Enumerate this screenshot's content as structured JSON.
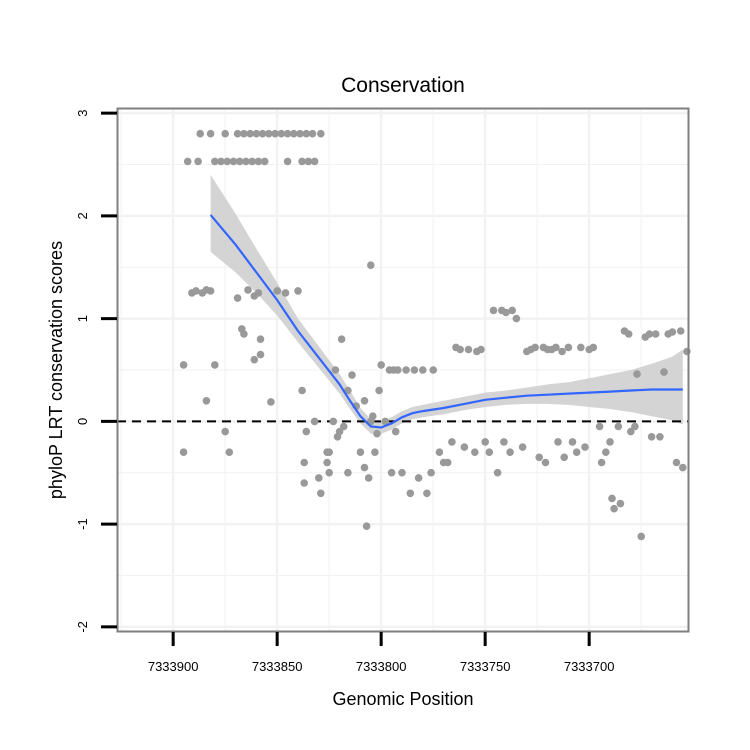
{
  "chart_data": {
    "type": "scatter",
    "title": "Conservation",
    "xlabel": "Genomic Position",
    "ylabel": "phyloP LRT conservation scores",
    "x_reversed": true,
    "xlim": [
      7333927,
      7333652
    ],
    "ylim": [
      -2.05,
      3.05
    ],
    "x_ticks": [
      7333900,
      7333850,
      7333800,
      7333750,
      7333700
    ],
    "x_tick_labels": [
      "7333900",
      "7333850",
      "7333800",
      "7333750",
      "7333700"
    ],
    "y_ticks": [
      -2,
      -1,
      0,
      1,
      2,
      3
    ],
    "y_tick_labels": [
      "-2",
      "-1",
      "0",
      "1",
      "2",
      "3"
    ],
    "reference_line": {
      "y": 0,
      "style": "dashed"
    },
    "colors": {
      "points": "#999999",
      "smooth": "#3366ff",
      "ribbon": "#cccccc",
      "reference": "#000000",
      "panel_border": "#7f7f7f",
      "grid": "#f2f2f2"
    },
    "series": [
      {
        "name": "scores",
        "kind": "points",
        "points": [
          [
            7333887,
            2.8
          ],
          [
            7333882,
            2.8
          ],
          [
            7333875,
            2.8
          ],
          [
            7333869,
            2.8
          ],
          [
            7333866,
            2.8
          ],
          [
            7333863,
            2.8
          ],
          [
            7333860,
            2.8
          ],
          [
            7333857,
            2.8
          ],
          [
            7333854,
            2.8
          ],
          [
            7333851,
            2.8
          ],
          [
            7333848,
            2.8
          ],
          [
            7333845,
            2.8
          ],
          [
            7333842,
            2.8
          ],
          [
            7333839,
            2.8
          ],
          [
            7333836,
            2.8
          ],
          [
            7333833,
            2.8
          ],
          [
            7333829,
            2.8
          ],
          [
            7333893,
            2.53
          ],
          [
            7333888,
            2.53
          ],
          [
            7333880,
            2.53
          ],
          [
            7333877,
            2.53
          ],
          [
            7333874,
            2.53
          ],
          [
            7333871,
            2.53
          ],
          [
            7333868,
            2.53
          ],
          [
            7333865,
            2.53
          ],
          [
            7333862,
            2.53
          ],
          [
            7333859,
            2.53
          ],
          [
            7333856,
            2.53
          ],
          [
            7333845,
            2.53
          ],
          [
            7333838,
            2.53
          ],
          [
            7333835,
            2.53
          ],
          [
            7333832,
            2.53
          ],
          [
            7333891,
            1.25
          ],
          [
            7333889,
            1.27
          ],
          [
            7333886,
            1.25
          ],
          [
            7333884,
            1.28
          ],
          [
            7333882,
            1.27
          ],
          [
            7333864,
            1.28
          ],
          [
            7333859,
            1.25
          ],
          [
            7333850,
            1.27
          ],
          [
            7333846,
            1.25
          ],
          [
            7333840,
            1.27
          ],
          [
            7333805,
            1.52
          ],
          [
            7333895,
            0.55
          ],
          [
            7333880,
            0.55
          ],
          [
            7333884,
            0.2
          ],
          [
            7333875,
            -0.1
          ],
          [
            7333873,
            -0.3
          ],
          [
            7333895,
            -0.3
          ],
          [
            7333869,
            1.2
          ],
          [
            7333867,
            0.9
          ],
          [
            7333866,
            0.85
          ],
          [
            7333861,
            0.6
          ],
          [
            7333858,
            0.8
          ],
          [
            7333858,
            0.65
          ],
          [
            7333861,
            1.22
          ],
          [
            7333853,
            0.19
          ],
          [
            7333838,
            0.3
          ],
          [
            7333837,
            -0.6
          ],
          [
            7333837,
            -0.4
          ],
          [
            7333836,
            -0.1
          ],
          [
            7333832,
            0.0
          ],
          [
            7333830,
            -0.55
          ],
          [
            7333829,
            -0.7
          ],
          [
            7333826,
            -0.3
          ],
          [
            7333826,
            -0.4
          ],
          [
            7333825,
            -0.5
          ],
          [
            7333825,
            -0.3
          ],
          [
            7333823,
            0.0
          ],
          [
            7333822,
            0.5
          ],
          [
            7333821,
            -0.15
          ],
          [
            7333820,
            -0.1
          ],
          [
            7333819,
            0.8
          ],
          [
            7333818,
            -0.05
          ],
          [
            7333816,
            0.3
          ],
          [
            7333816,
            -0.5
          ],
          [
            7333814,
            0.45
          ],
          [
            7333812,
            0.15
          ],
          [
            7333810,
            -0.3
          ],
          [
            7333808,
            -0.45
          ],
          [
            7333808,
            0.2
          ],
          [
            7333807,
            -1.02
          ],
          [
            7333806,
            -0.55
          ],
          [
            7333805,
            0.0
          ],
          [
            7333804,
            0.05
          ],
          [
            7333803,
            -0.3
          ],
          [
            7333802,
            -0.12
          ],
          [
            7333801,
            0.3
          ],
          [
            7333800,
            0.55
          ],
          [
            7333798,
            0.0
          ],
          [
            7333796,
            0.5
          ],
          [
            7333795,
            -0.5
          ],
          [
            7333794,
            0.5
          ],
          [
            7333793,
            -0.1
          ],
          [
            7333792,
            0.5
          ],
          [
            7333790,
            -0.5
          ],
          [
            7333788,
            0.5
          ],
          [
            7333786,
            -0.7
          ],
          [
            7333784,
            0.5
          ],
          [
            7333782,
            -0.55
          ],
          [
            7333780,
            0.5
          ],
          [
            7333778,
            -0.7
          ],
          [
            7333776,
            -0.5
          ],
          [
            7333775,
            0.5
          ],
          [
            7333772,
            -0.3
          ],
          [
            7333770,
            -0.4
          ],
          [
            7333768,
            -0.4
          ],
          [
            7333766,
            -0.2
          ],
          [
            7333764,
            0.72
          ],
          [
            7333762,
            0.7
          ],
          [
            7333760,
            -0.25
          ],
          [
            7333758,
            0.7
          ],
          [
            7333755,
            -0.3
          ],
          [
            7333754,
            0.68
          ],
          [
            7333752,
            0.7
          ],
          [
            7333750,
            -0.2
          ],
          [
            7333748,
            -0.3
          ],
          [
            7333746,
            1.08
          ],
          [
            7333744,
            -0.5
          ],
          [
            7333742,
            1.08
          ],
          [
            7333741,
            -0.2
          ],
          [
            7333740,
            1.06
          ],
          [
            7333738,
            -0.3
          ],
          [
            7333737,
            1.08
          ],
          [
            7333735,
            1.0
          ],
          [
            7333732,
            -0.25
          ],
          [
            7333730,
            0.68
          ],
          [
            7333728,
            0.7
          ],
          [
            7333726,
            0.72
          ],
          [
            7333724,
            -0.35
          ],
          [
            7333722,
            0.72
          ],
          [
            7333721,
            -0.4
          ],
          [
            7333720,
            0.7
          ],
          [
            7333718,
            0.7
          ],
          [
            7333716,
            0.72
          ],
          [
            7333715,
            -0.2
          ],
          [
            7333713,
            0.68
          ],
          [
            7333712,
            -0.35
          ],
          [
            7333710,
            0.72
          ],
          [
            7333708,
            -0.2
          ],
          [
            7333706,
            -0.3
          ],
          [
            7333704,
            0.72
          ],
          [
            7333702,
            -0.25
          ],
          [
            7333700,
            0.7
          ],
          [
            7333698,
            0.72
          ],
          [
            7333695,
            -0.05
          ],
          [
            7333694,
            -0.4
          ],
          [
            7333692,
            -0.3
          ],
          [
            7333690,
            -0.2
          ],
          [
            7333689,
            -0.75
          ],
          [
            7333688,
            -0.85
          ],
          [
            7333686,
            -0.05
          ],
          [
            7333685,
            -0.8
          ],
          [
            7333683,
            0.88
          ],
          [
            7333681,
            0.85
          ],
          [
            7333680,
            -0.1
          ],
          [
            7333678,
            -0.05
          ],
          [
            7333677,
            0.46
          ],
          [
            7333675,
            -1.12
          ],
          [
            7333673,
            0.82
          ],
          [
            7333671,
            0.85
          ],
          [
            7333670,
            -0.15
          ],
          [
            7333668,
            0.85
          ],
          [
            7333666,
            -0.15
          ],
          [
            7333664,
            0.48
          ],
          [
            7333662,
            0.85
          ],
          [
            7333660,
            0.87
          ],
          [
            7333658,
            -0.4
          ],
          [
            7333656,
            0.88
          ],
          [
            7333655,
            -0.45
          ],
          [
            7333653,
            0.68
          ]
        ]
      },
      {
        "name": "loess",
        "kind": "line",
        "points": [
          [
            7333882,
            2.01
          ],
          [
            7333870,
            1.72
          ],
          [
            7333860,
            1.45
          ],
          [
            7333850,
            1.18
          ],
          [
            7333840,
            0.88
          ],
          [
            7333830,
            0.62
          ],
          [
            7333820,
            0.36
          ],
          [
            7333815,
            0.2
          ],
          [
            7333810,
            0.05
          ],
          [
            7333805,
            -0.05
          ],
          [
            7333800,
            -0.06
          ],
          [
            7333795,
            -0.02
          ],
          [
            7333790,
            0.04
          ],
          [
            7333785,
            0.08
          ],
          [
            7333780,
            0.1
          ],
          [
            7333770,
            0.13
          ],
          [
            7333760,
            0.17
          ],
          [
            7333750,
            0.21
          ],
          [
            7333740,
            0.23
          ],
          [
            7333730,
            0.25
          ],
          [
            7333720,
            0.26
          ],
          [
            7333710,
            0.27
          ],
          [
            7333700,
            0.28
          ],
          [
            7333690,
            0.29
          ],
          [
            7333680,
            0.3
          ],
          [
            7333670,
            0.31
          ],
          [
            7333660,
            0.31
          ],
          [
            7333655,
            0.31
          ]
        ],
        "ribbon_lower": [
          1.65,
          1.45,
          1.25,
          1.03,
          0.77,
          0.52,
          0.27,
          0.12,
          -0.02,
          -0.12,
          -0.12,
          -0.08,
          -0.02,
          0.02,
          0.04,
          0.07,
          0.11,
          0.14,
          0.16,
          0.17,
          0.17,
          0.16,
          0.14,
          0.12,
          0.09,
          0.05,
          0.01,
          -0.03
        ],
        "ribbon_upper": [
          2.4,
          2.02,
          1.68,
          1.35,
          1.0,
          0.73,
          0.46,
          0.3,
          0.13,
          0.02,
          0.0,
          0.04,
          0.1,
          0.14,
          0.16,
          0.2,
          0.24,
          0.28,
          0.3,
          0.33,
          0.36,
          0.38,
          0.42,
          0.46,
          0.5,
          0.56,
          0.63,
          0.7
        ]
      }
    ]
  }
}
